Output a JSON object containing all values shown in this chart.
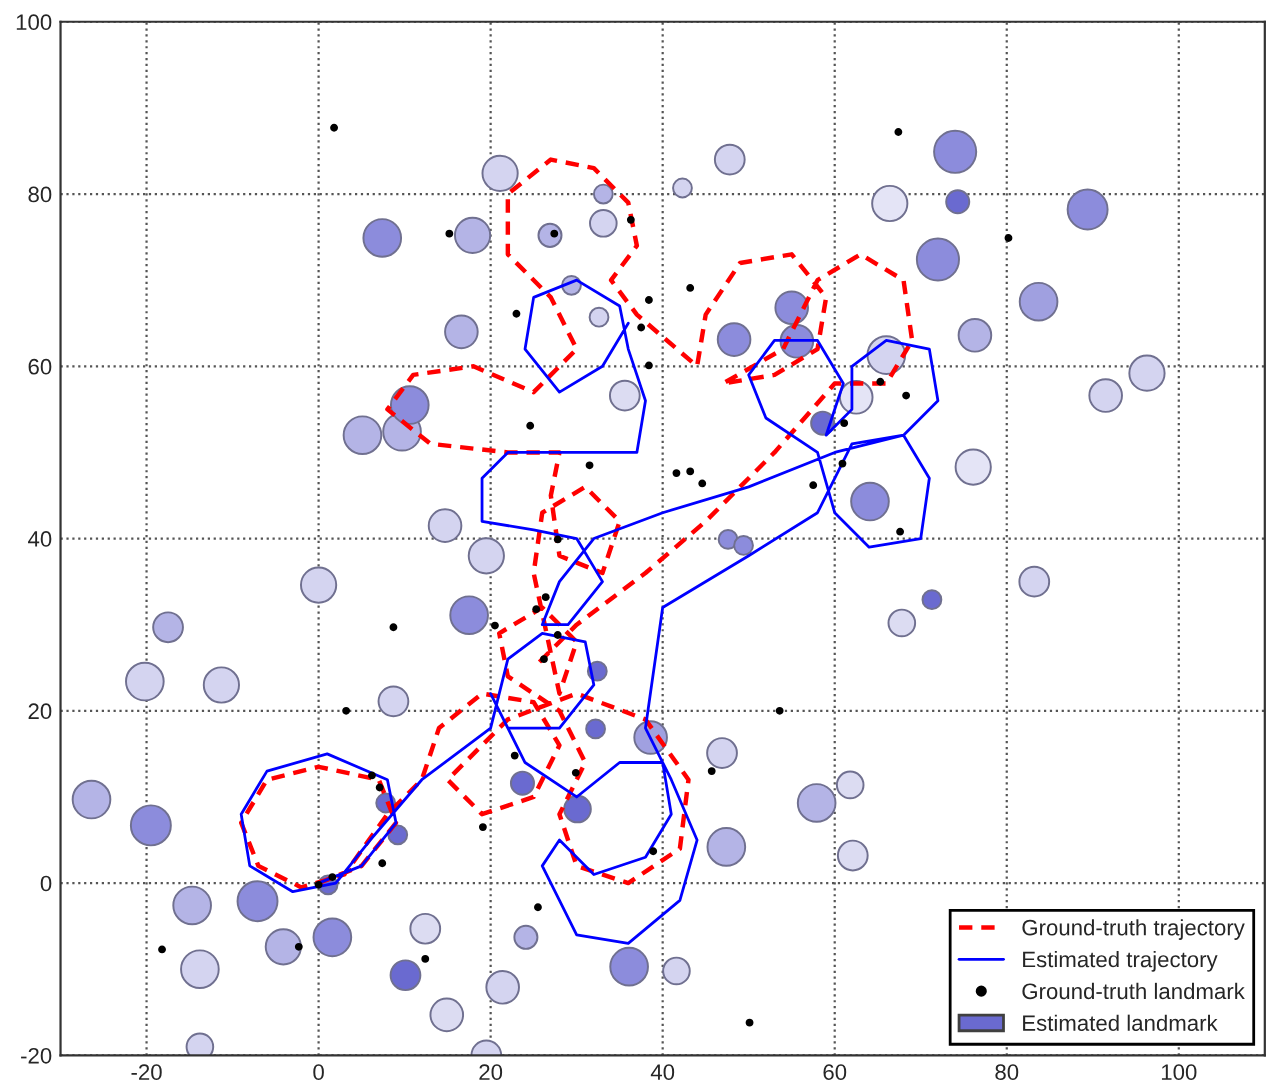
{
  "chart_data": {
    "type": "line",
    "xlim": [
      -30,
      110
    ],
    "ylim": [
      -20,
      100
    ],
    "xticks": [
      -20,
      0,
      20,
      40,
      60,
      80,
      100
    ],
    "yticks": [
      -20,
      0,
      20,
      40,
      60,
      80,
      100
    ],
    "grid": true,
    "legend": "bottom right",
    "series": [
      {
        "name": "Ground-truth trajectory",
        "type": "line",
        "color": "#ff0000",
        "line_style": "dashed",
        "x": [
          0,
          5,
          9,
          7,
          0,
          -6,
          -9,
          -7,
          -2,
          3,
          8,
          12,
          14,
          19,
          25,
          28,
          25,
          19,
          15,
          22,
          30,
          38,
          43,
          42,
          36,
          30,
          28,
          31,
          28,
          22,
          21,
          26,
          30,
          28,
          25,
          26,
          31,
          35,
          33,
          28,
          27,
          28,
          22,
          13,
          8,
          11,
          18,
          25,
          30,
          27,
          22,
          22,
          27,
          32,
          36,
          37,
          34,
          37,
          44,
          45,
          49,
          55,
          59,
          58,
          53,
          47,
          54,
          58,
          63,
          68,
          69,
          66,
          60,
          53,
          45,
          38,
          30,
          25
        ],
        "values": [
          0,
          2,
          7,
          12,
          13.5,
          12,
          7,
          2,
          -0.5,
          1,
          8,
          12,
          18,
          22,
          21,
          16,
          10,
          8,
          12,
          19,
          22,
          19,
          12,
          4,
          0,
          2,
          8,
          14,
          20,
          24,
          29,
          32,
          28,
          22,
          36,
          43,
          46,
          42,
          36,
          38,
          45,
          50,
          50,
          51,
          55,
          59,
          60,
          57,
          62,
          68,
          73,
          80,
          84,
          83,
          79,
          74,
          70,
          66,
          60,
          66,
          72,
          73,
          68,
          62,
          59,
          58,
          62,
          70,
          73,
          70,
          63,
          58,
          58,
          50,
          42,
          36,
          30,
          25
        ]
      },
      {
        "name": "Estimated trajectory",
        "type": "line",
        "color": "#0000ff",
        "line_style": "solid",
        "x": [
          0,
          5,
          9,
          8,
          1,
          -6,
          -9,
          -8,
          -3,
          2,
          6,
          12,
          20,
          22,
          26,
          31,
          32,
          28,
          22,
          20,
          24,
          30,
          35,
          40,
          41,
          38,
          32,
          28,
          26,
          30,
          36,
          42,
          44,
          41,
          38,
          40,
          50,
          58,
          60,
          62,
          68,
          71,
          70,
          64,
          60,
          58,
          52,
          50,
          53,
          58,
          61,
          59,
          62,
          62,
          66,
          71,
          72,
          68,
          60,
          50,
          40,
          32,
          28,
          26,
          29,
          33,
          30,
          25,
          19,
          19,
          22,
          30,
          37,
          38,
          36,
          35,
          30,
          25,
          24,
          28,
          33,
          36
        ],
        "values": [
          0,
          2,
          7,
          12,
          15,
          13,
          8,
          2,
          -1,
          0,
          5,
          12,
          18,
          26,
          29,
          28,
          23,
          18,
          18,
          22,
          14,
          10,
          14,
          14,
          8,
          3,
          1,
          5,
          2,
          -6,
          -7,
          -2,
          5,
          12,
          18,
          32,
          38,
          43,
          47,
          51,
          52,
          47,
          40,
          39,
          43,
          50,
          54,
          59,
          63,
          63,
          58,
          52,
          55,
          60,
          63,
          62,
          56,
          52,
          50,
          46,
          43,
          40,
          35,
          30,
          30,
          35,
          40,
          41,
          42,
          47,
          50,
          50,
          50,
          56,
          62,
          67,
          70,
          68,
          62,
          57,
          60,
          65
        ]
      },
      {
        "name": "Ground-truth landmark",
        "type": "scatter",
        "color": "#000000",
        "marker": "circle",
        "x": [
          1.8,
          15.2,
          27.4,
          36.3,
          23,
          38.4,
          37.5,
          38.4,
          24.6,
          31.5,
          27.8,
          26.4,
          67.4,
          80.2,
          43.2,
          65.3,
          68.3,
          61.1,
          60.9,
          41.6,
          43.2,
          44.6,
          57.5,
          67.6,
          8.7,
          25.3,
          20.5,
          27.8,
          26.2,
          3.2,
          22.8,
          6.2,
          7.1,
          29.9,
          19.1,
          7.4,
          1.6,
          0,
          38.9,
          25.5,
          -2.3,
          -18.2,
          12.4,
          53.6,
          45.7,
          50.1
        ],
        "values": [
          87.7,
          75.4,
          75.4,
          77,
          66.1,
          67.7,
          64.5,
          60.1,
          53.1,
          48.5,
          39.9,
          33.2,
          87.2,
          74.9,
          69.1,
          58.2,
          56.6,
          53.4,
          48.7,
          47.6,
          47.8,
          46.4,
          46.2,
          40.8,
          29.7,
          31.8,
          29.9,
          28.8,
          26,
          20,
          14.8,
          12.5,
          11.1,
          12.8,
          6.5,
          2.3,
          0.7,
          -0.2,
          3.7,
          -2.8,
          -7.4,
          -7.7,
          -8.8,
          20,
          13,
          -16.2
        ]
      },
      {
        "name": "Estimated landmark",
        "type": "bubble",
        "color": "#6a6ad0",
        "x": [
          74,
          74.3,
          89.4,
          72,
          7.4,
          17.9,
          83.7,
          76.3,
          96.3,
          91.5,
          16.6,
          5.1,
          9.7,
          10.6,
          48.3,
          55,
          55.6,
          66,
          64.1,
          58.6,
          47.6,
          49.4,
          71.3,
          83.2,
          17.5,
          32.4,
          32.2,
          23.7,
          30.1,
          7.8,
          9.2,
          1.1,
          -19.5,
          -26.4,
          -7.1,
          -4.1,
          1.6,
          10.1,
          -14.7,
          -13.8,
          36.1,
          38.6,
          46.9,
          57.9,
          47.4,
          41.6,
          -11.3,
          -17.5,
          -20.2,
          0,
          8.7,
          24.1,
          21.4,
          14.9,
          19.5,
          12.4,
          -13.8,
          21.1,
          33.1,
          26.9,
          33.1,
          29.4,
          32.6,
          35.6,
          14.7,
          19.5,
          47.8,
          42.3,
          66.4,
          76.1,
          62.5,
          61.8,
          62.1,
          67.8
        ],
        "values": [
          84.9,
          79.1,
          78.2,
          72.4,
          74.9,
          75.2,
          67.5,
          63.6,
          59.2,
          56.6,
          64,
          52,
          52.4,
          55.5,
          63.1,
          66.8,
          62.9,
          61.3,
          44.3,
          53.4,
          39.9,
          39.2,
          32.9,
          35,
          31.1,
          24.6,
          17.9,
          11.6,
          8.6,
          9.3,
          5.6,
          -0.2,
          6.7,
          9.7,
          -2.1,
          -7.4,
          -6.3,
          -10.7,
          -2.6,
          -10,
          -9.7,
          16.9,
          15.1,
          9.3,
          4.2,
          -10.2,
          23,
          29.7,
          23.4,
          34.6,
          21.1,
          -6.3,
          -12.1,
          -15.3,
          -20,
          -5.3,
          -19,
          82.4,
          80,
          75.2,
          76.6,
          69.4,
          65.7,
          56.6,
          41.5,
          38,
          84,
          80.7,
          78.9,
          48.3,
          56.4,
          11.4,
          3.2,
          30.2
        ],
        "sizes": [
          1,
          0.3,
          0.9,
          1,
          0.8,
          0.7,
          0.8,
          0.6,
          0.7,
          0.6,
          0.6,
          0.8,
          0.8,
          0.8,
          0.6,
          0.6,
          0.6,
          0.8,
          0.8,
          0.3,
          0.2,
          0.2,
          0.2,
          0.5,
          0.8,
          0.2,
          0.2,
          0.3,
          0.4,
          0.2,
          0.2,
          0.2,
          0.9,
          0.8,
          0.9,
          0.7,
          0.8,
          0.5,
          0.8,
          0.8,
          0.8,
          0.6,
          0.5,
          0.8,
          0.8,
          0.4,
          0.7,
          0.5,
          0.8,
          0.7,
          0.5,
          0.3,
          0.6,
          0.6,
          0.5,
          0.5,
          0.4,
          0.7,
          0.2,
          0.3,
          0.4,
          0.2,
          0.2,
          0.5,
          0.6,
          0.7,
          0.5,
          0.2,
          0.7,
          0.7,
          0.6,
          0.4,
          0.5,
          0.4
        ],
        "colors": [
          "#8c8cdc",
          "#6a6ad0",
          "#8c8cdc",
          "#8c8cdc",
          "#8c8cdc",
          "#b4b4e6",
          "#a0a0e0",
          "#b4b4e6",
          "#d4d4f0",
          "#d4d4f0",
          "#b4b4e6",
          "#b4b4e6",
          "#b4b4e6",
          "#8c8cdc",
          "#8c8cdc",
          "#8c8cdc",
          "#8c8cdc",
          "#d4d4f0",
          "#8c8cdc",
          "#6a6ad0",
          "#8c8cdc",
          "#8c8cdc",
          "#6a6ad0",
          "#d4d4f0",
          "#8c8cdc",
          "#6a6ad0",
          "#6a6ad0",
          "#6a6ad0",
          "#6a6ad0",
          "#6a6ad0",
          "#6a6ad0",
          "#6a6ad0",
          "#8c8cdc",
          "#b4b4e6",
          "#8c8cdc",
          "#b4b4e6",
          "#8c8cdc",
          "#6a6ad0",
          "#b4b4e6",
          "#d4d4f0",
          "#8c8cdc",
          "#a0a0e0",
          "#d4d4f0",
          "#b4b4e6",
          "#b4b4e6",
          "#d4d4f0",
          "#d4d4f0",
          "#b4b4e6",
          "#d4d4f0",
          "#d4d4f0",
          "#d4d4f0",
          "#b4b4e6",
          "#d4d4f0",
          "#dcdcf2",
          "#d4d4f0",
          "#dcdcf2",
          "#d4d4f0",
          "#d4d4f0",
          "#b4b4e6",
          "#b4b4e6",
          "#d4d4f0",
          "#b4b4e6",
          "#d4d4f0",
          "#dcdcf2",
          "#d4d4f0",
          "#d4d4f0",
          "#d4d4f0",
          "#d4d4f0",
          "#e4e4f6",
          "#e4e4f6",
          "#e4e4f6",
          "#dcdcf2",
          "#dcdcf2",
          "#dcdcf2"
        ]
      }
    ]
  }
}
